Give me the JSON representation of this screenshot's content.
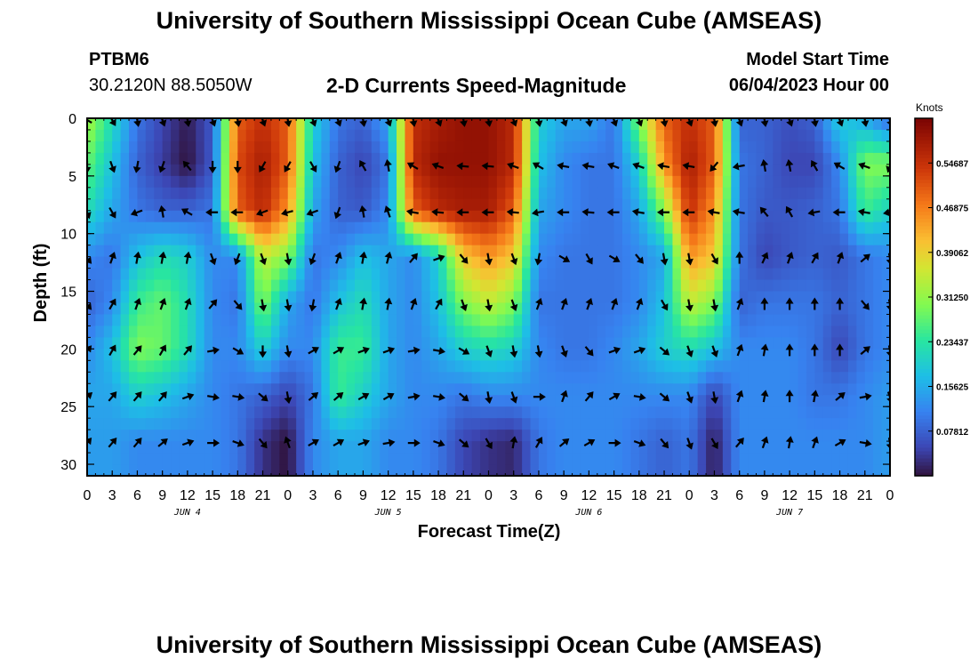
{
  "title": "University of Southern Mississippi Ocean Cube (AMSEAS)",
  "station": {
    "id": "PTBM6",
    "coords": "30.2120N  88.5050W"
  },
  "subtitle": "2-D Currents Speed-Magnitude",
  "model": {
    "label": "Model Start Time",
    "value": "06/04/2023 Hour 00"
  },
  "footer_title": "University of Southern Mississippi Ocean Cube (AMSEAS)",
  "chart_data": {
    "type": "heatmap",
    "title": "2-D Currents Speed-Magnitude",
    "xlabel": "Forecast Time(Z)",
    "ylabel": "Depth (ft)",
    "colorbar_label": "Knots",
    "x_range_hours": [
      0,
      96
    ],
    "x_tick_labels": [
      "0",
      "3",
      "6",
      "9",
      "12",
      "15",
      "18",
      "21",
      "0",
      "3",
      "6",
      "9",
      "12",
      "15",
      "18",
      "21",
      "0",
      "3",
      "6",
      "9",
      "12",
      "15",
      "18",
      "21",
      "0",
      "3",
      "6",
      "9",
      "12",
      "15",
      "18",
      "21",
      "0"
    ],
    "day_labels": [
      "JUN 4",
      "JUN 5",
      "JUN 6",
      "JUN 7"
    ],
    "y_range_ft": [
      0,
      31
    ],
    "y_ticks": [
      0,
      5,
      10,
      15,
      20,
      25,
      30
    ],
    "colorbar_range_knots": [
      0.0,
      0.625
    ],
    "colorbar_ticks": [
      "0.07812",
      "0.15625",
      "0.23437",
      "0.31250",
      "0.39062",
      "0.46875",
      "0.54687"
    ],
    "times_hr": [
      0,
      3,
      6,
      9,
      12,
      15,
      18,
      21,
      24,
      27,
      30,
      33,
      36,
      39,
      42,
      45,
      48,
      51,
      54,
      57,
      60,
      63,
      66,
      69,
      72,
      75,
      78,
      81,
      84,
      87,
      90,
      93,
      96
    ],
    "depths_ft": [
      0,
      4,
      8,
      12,
      16,
      20,
      24,
      28
    ],
    "speed_knots": [
      [
        0.33,
        0.22,
        0.1,
        0.05,
        0.01,
        0.07,
        0.5,
        0.55,
        0.5,
        0.2,
        0.1,
        0.08,
        0.15,
        0.55,
        0.58,
        0.6,
        0.6,
        0.56,
        0.2,
        0.15,
        0.15,
        0.1,
        0.3,
        0.5,
        0.55,
        0.5,
        0.08,
        0.08,
        0.06,
        0.08,
        0.2,
        0.15,
        0.08
      ],
      [
        0.28,
        0.18,
        0.08,
        0.04,
        0.0,
        0.07,
        0.52,
        0.58,
        0.5,
        0.18,
        0.08,
        0.05,
        0.1,
        0.56,
        0.6,
        0.6,
        0.6,
        0.56,
        0.18,
        0.12,
        0.1,
        0.1,
        0.2,
        0.45,
        0.58,
        0.5,
        0.1,
        0.08,
        0.05,
        0.05,
        0.12,
        0.3,
        0.3
      ],
      [
        0.22,
        0.15,
        0.1,
        0.08,
        0.08,
        0.1,
        0.5,
        0.56,
        0.45,
        0.15,
        0.08,
        0.07,
        0.12,
        0.5,
        0.56,
        0.58,
        0.58,
        0.5,
        0.15,
        0.12,
        0.1,
        0.1,
        0.15,
        0.3,
        0.55,
        0.45,
        0.1,
        0.07,
        0.07,
        0.08,
        0.1,
        0.25,
        0.2
      ],
      [
        0.12,
        0.1,
        0.18,
        0.22,
        0.2,
        0.12,
        0.12,
        0.35,
        0.3,
        0.1,
        0.12,
        0.18,
        0.15,
        0.12,
        0.2,
        0.4,
        0.45,
        0.4,
        0.12,
        0.1,
        0.1,
        0.1,
        0.12,
        0.15,
        0.45,
        0.4,
        0.1,
        0.05,
        0.07,
        0.08,
        0.07,
        0.1,
        0.12
      ],
      [
        0.08,
        0.12,
        0.25,
        0.28,
        0.22,
        0.12,
        0.1,
        0.3,
        0.15,
        0.1,
        0.18,
        0.22,
        0.15,
        0.12,
        0.18,
        0.3,
        0.35,
        0.3,
        0.1,
        0.1,
        0.1,
        0.1,
        0.12,
        0.18,
        0.35,
        0.3,
        0.08,
        0.1,
        0.1,
        0.1,
        0.08,
        0.1,
        0.12
      ],
      [
        0.12,
        0.18,
        0.3,
        0.28,
        0.22,
        0.12,
        0.12,
        0.2,
        0.12,
        0.12,
        0.25,
        0.25,
        0.15,
        0.12,
        0.15,
        0.2,
        0.22,
        0.2,
        0.12,
        0.1,
        0.1,
        0.12,
        0.15,
        0.2,
        0.22,
        0.18,
        0.12,
        0.12,
        0.12,
        0.1,
        0.05,
        0.1,
        0.12
      ],
      [
        0.15,
        0.15,
        0.2,
        0.18,
        0.15,
        0.12,
        0.1,
        0.08,
        0.05,
        0.1,
        0.25,
        0.2,
        0.15,
        0.12,
        0.12,
        0.1,
        0.12,
        0.12,
        0.12,
        0.12,
        0.12,
        0.12,
        0.12,
        0.12,
        0.12,
        0.05,
        0.12,
        0.12,
        0.12,
        0.1,
        0.1,
        0.12,
        0.14
      ],
      [
        0.14,
        0.14,
        0.12,
        0.12,
        0.12,
        0.12,
        0.1,
        0.03,
        0.0,
        0.12,
        0.15,
        0.15,
        0.12,
        0.12,
        0.1,
        0.05,
        0.03,
        0.02,
        0.1,
        0.12,
        0.12,
        0.12,
        0.1,
        0.08,
        0.1,
        0.01,
        0.12,
        0.12,
        0.12,
        0.12,
        0.12,
        0.12,
        0.14
      ]
    ],
    "arrow_times_hr": [
      0,
      3,
      6,
      9,
      12,
      15,
      18,
      21,
      24,
      27,
      30,
      33,
      36,
      39,
      42,
      45,
      48,
      51,
      54,
      57,
      60,
      63,
      66,
      69,
      72,
      75,
      78,
      81,
      84,
      87,
      90,
      93,
      96
    ],
    "arrow_depths_ft": [
      0,
      4,
      8,
      12,
      16,
      20,
      24,
      28
    ],
    "arrow_directions_deg": [
      [
        300,
        150,
        170,
        160,
        170,
        160,
        170,
        160,
        170,
        160,
        160,
        170,
        160,
        170,
        160,
        170,
        170,
        160,
        170,
        160,
        170,
        160,
        160,
        170,
        160,
        170,
        160,
        170,
        160,
        170,
        160,
        170,
        160
      ],
      [
        180,
        160,
        190,
        200,
        320,
        180,
        180,
        210,
        210,
        150,
        200,
        330,
        350,
        300,
        290,
        275,
        275,
        290,
        300,
        280,
        280,
        290,
        290,
        280,
        280,
        220,
        260,
        350,
        350,
        330,
        300,
        290,
        200
      ],
      [
        160,
        150,
        250,
        350,
        300,
        270,
        270,
        250,
        255,
        250,
        200,
        350,
        340,
        280,
        275,
        270,
        270,
        275,
        260,
        270,
        275,
        270,
        280,
        270,
        270,
        280,
        280,
        320,
        330,
        260,
        270,
        280,
        260
      ],
      [
        140,
        20,
        10,
        10,
        10,
        160,
        200,
        160,
        170,
        200,
        20,
        10,
        15,
        40,
        70,
        140,
        170,
        160,
        190,
        120,
        150,
        120,
        140,
        170,
        170,
        150,
        0,
        25,
        20,
        30,
        20,
        50,
        170
      ],
      [
        140,
        30,
        20,
        20,
        20,
        40,
        140,
        170,
        170,
        190,
        20,
        10,
        10,
        20,
        30,
        160,
        170,
        160,
        20,
        20,
        20,
        20,
        20,
        150,
        170,
        170,
        20,
        0,
        0,
        0,
        0,
        140,
        170
      ],
      [
        40,
        30,
        40,
        30,
        40,
        80,
        120,
        180,
        170,
        60,
        60,
        70,
        70,
        80,
        100,
        120,
        160,
        170,
        170,
        160,
        140,
        70,
        70,
        130,
        160,
        160,
        20,
        10,
        0,
        0,
        0,
        50,
        170
      ],
      [
        50,
        40,
        40,
        40,
        70,
        100,
        100,
        130,
        170,
        50,
        50,
        60,
        60,
        80,
        100,
        130,
        170,
        160,
        90,
        20,
        40,
        60,
        100,
        130,
        160,
        170,
        20,
        10,
        0,
        10,
        50,
        80,
        160
      ],
      [
        40,
        40,
        40,
        50,
        70,
        90,
        110,
        140,
        340,
        60,
        60,
        70,
        80,
        90,
        110,
        130,
        150,
        10,
        30,
        50,
        60,
        90,
        110,
        140,
        160,
        150,
        40,
        20,
        10,
        20,
        60,
        100,
        170
      ]
    ]
  }
}
